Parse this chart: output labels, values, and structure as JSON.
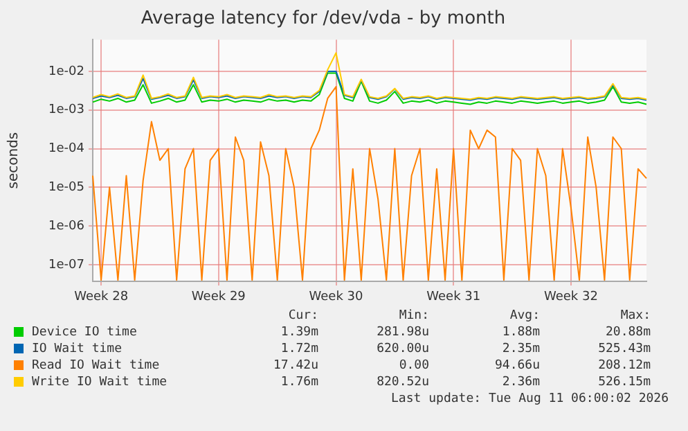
{
  "chart_data": {
    "type": "line",
    "title": "Average latency for /dev/vda - by month",
    "ylabel": "seconds",
    "log": "y",
    "grid": true,
    "legend": "bottom",
    "ylim": [
      3.7e-08,
      0.066
    ],
    "yticks": [
      {
        "value": 1e-07,
        "label": "1e-07"
      },
      {
        "value": 1e-06,
        "label": "1e-06"
      },
      {
        "value": 1e-05,
        "label": "1e-05"
      },
      {
        "value": 0.0001,
        "label": "1e-04"
      },
      {
        "value": 0.001,
        "label": "1e-03"
      },
      {
        "value": 0.01,
        "label": "1e-02"
      }
    ],
    "categories": [
      null,
      "Week 28",
      null,
      null,
      null,
      null,
      null,
      null,
      null,
      null,
      null,
      null,
      null,
      null,
      null,
      "Week 29",
      null,
      null,
      null,
      null,
      null,
      null,
      null,
      null,
      null,
      null,
      null,
      null,
      null,
      "Week 30",
      null,
      null,
      null,
      null,
      null,
      null,
      null,
      null,
      null,
      null,
      null,
      null,
      null,
      "Week 31",
      null,
      null,
      null,
      null,
      null,
      null,
      null,
      null,
      null,
      null,
      null,
      null,
      null,
      "Week 32",
      null,
      null,
      null,
      null,
      null,
      null,
      null,
      null,
      null
    ],
    "series": [
      {
        "name": "Device IO time",
        "color": "#00cc00",
        "values": [
          0.0016,
          0.0019,
          0.0017,
          0.002,
          0.0016,
          0.0018,
          0.0045,
          0.0015,
          0.0017,
          0.002,
          0.0016,
          0.0018,
          0.0045,
          0.0016,
          0.0018,
          0.0017,
          0.0019,
          0.0016,
          0.0018,
          0.0017,
          0.0016,
          0.0019,
          0.0017,
          0.0018,
          0.0016,
          0.0018,
          0.0017,
          0.0025,
          0.009,
          0.009,
          0.002,
          0.0017,
          0.0055,
          0.0017,
          0.0015,
          0.0018,
          0.003,
          0.0015,
          0.0017,
          0.0016,
          0.0018,
          0.0015,
          0.0017,
          0.0016,
          0.0015,
          0.0014,
          0.0016,
          0.0015,
          0.0017,
          0.0016,
          0.0015,
          0.0017,
          0.0016,
          0.0015,
          0.0016,
          0.0017,
          0.0015,
          0.0016,
          0.0017,
          0.0015,
          0.0016,
          0.0018,
          0.004,
          0.0016,
          0.0015,
          0.0016,
          0.0014
        ]
      },
      {
        "name": "IO Wait time",
        "color": "#0066b3",
        "values": [
          0.002,
          0.0023,
          0.0021,
          0.0024,
          0.002,
          0.0022,
          0.0065,
          0.0019,
          0.0021,
          0.0024,
          0.002,
          0.0022,
          0.006,
          0.002,
          0.0022,
          0.0021,
          0.0023,
          0.002,
          0.0022,
          0.0021,
          0.002,
          0.0023,
          0.0021,
          0.0022,
          0.002,
          0.0022,
          0.0021,
          0.003,
          0.01,
          0.01,
          0.0024,
          0.0021,
          0.006,
          0.0021,
          0.0019,
          0.0022,
          0.0035,
          0.0019,
          0.0021,
          0.002,
          0.0022,
          0.0019,
          0.0021,
          0.002,
          0.0019,
          0.0018,
          0.002,
          0.0019,
          0.0021,
          0.002,
          0.0019,
          0.0021,
          0.002,
          0.0019,
          0.002,
          0.0021,
          0.0019,
          0.002,
          0.0021,
          0.0019,
          0.002,
          0.0022,
          0.0045,
          0.002,
          0.0019,
          0.002,
          0.0018
        ]
      },
      {
        "name": "Read IO Wait time",
        "color": "#ff8000",
        "values": [
          2e-05,
          4e-08,
          1e-05,
          4e-08,
          2e-05,
          4e-08,
          1.5e-05,
          0.0005,
          5e-05,
          0.0001,
          4e-08,
          3e-05,
          0.0001,
          4e-08,
          5e-05,
          0.0001,
          4e-08,
          0.0002,
          5e-05,
          4e-08,
          0.00015,
          2e-05,
          4e-08,
          0.0001,
          1e-05,
          4e-08,
          0.0001,
          0.0003,
          0.002,
          0.004,
          4e-08,
          3e-05,
          4e-08,
          0.0001,
          5e-06,
          4e-08,
          0.0001,
          4e-08,
          2e-05,
          0.0001,
          4e-08,
          3e-05,
          4e-08,
          0.0001,
          4e-08,
          0.0003,
          0.0001,
          0.0003,
          0.0002,
          4e-08,
          0.0001,
          5e-05,
          4e-08,
          0.0001,
          2e-05,
          4e-08,
          0.0001,
          3e-06,
          4e-08,
          0.0002,
          1e-05,
          4e-08,
          0.0002,
          0.0001,
          4e-08,
          3e-05,
          1.7e-05
        ]
      },
      {
        "name": "Write IO Wait time",
        "color": "#ffcc00",
        "values": [
          0.0021,
          0.0025,
          0.0022,
          0.0026,
          0.0021,
          0.0023,
          0.008,
          0.002,
          0.0022,
          0.0026,
          0.0021,
          0.0023,
          0.007,
          0.0021,
          0.0023,
          0.0022,
          0.0025,
          0.0021,
          0.0023,
          0.0022,
          0.0021,
          0.0025,
          0.0022,
          0.0023,
          0.0021,
          0.0023,
          0.0022,
          0.0032,
          0.011,
          0.03,
          0.0025,
          0.0022,
          0.0062,
          0.0022,
          0.002,
          0.0023,
          0.0036,
          0.002,
          0.0022,
          0.0021,
          0.0023,
          0.002,
          0.0022,
          0.0021,
          0.002,
          0.0019,
          0.0021,
          0.002,
          0.0022,
          0.0021,
          0.002,
          0.0022,
          0.0021,
          0.002,
          0.0021,
          0.0022,
          0.002,
          0.0021,
          0.0022,
          0.002,
          0.0021,
          0.0023,
          0.0048,
          0.0021,
          0.002,
          0.0021,
          0.0019
        ]
      }
    ],
    "annotations": [
      "Cur:",
      "Min:",
      "Avg:",
      "Max:",
      "1.39m",
      "281.98u",
      "1.88m",
      "20.88m",
      "1.72m",
      "620.00u",
      "2.35m",
      "525.43m",
      "17.42u",
      "0.00",
      "94.66u",
      "208.12m",
      "1.76m",
      "820.52u",
      "2.36m",
      "526.15m",
      "Last update: Tue Aug 11 06:00:02 2026"
    ]
  }
}
